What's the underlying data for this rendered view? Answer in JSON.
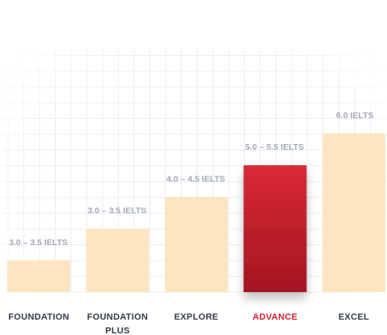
{
  "chart_data": {
    "type": "bar",
    "categories": [
      "FOUNDATION",
      "FOUNDATION PLUS",
      "EXPLORE",
      "ADVANCE",
      "EXCEL"
    ],
    "values": [
      1,
      2,
      3,
      4,
      5
    ],
    "data_labels": [
      "3.0 – 3.5 IELTS",
      "3.0 – 3.5 IELTS",
      "4.0 – 4.5 IELTS",
      "5.0 – 5.5 IELTS",
      "6.0 IELTS"
    ],
    "highlighted_index": 3,
    "title": "",
    "xlabel": "",
    "ylabel": "",
    "ylim": [
      0,
      5
    ],
    "grid": true,
    "legend": "none"
  },
  "colors": {
    "bar": "#fde5c1",
    "highlight_top": "#d92a36",
    "highlight_bottom": "#a3151f",
    "category_text": "#333a4a",
    "highlight_text": "#d6202e",
    "value_label": "#a3a9b5",
    "grid": "#e6eaf0"
  }
}
